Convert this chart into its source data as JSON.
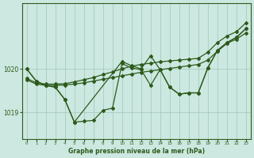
{
  "title": "Graphe pression niveau de la mer (hPa)",
  "background_color": "#cce8e0",
  "line_color": "#2d5a1b",
  "grid_color": "#a0c8b8",
  "xlim": [
    -0.5,
    23.5
  ],
  "ylim": [
    1018.4,
    1021.5
  ],
  "yticks": [
    1019,
    1020
  ],
  "xticks": [
    0,
    1,
    2,
    3,
    4,
    5,
    6,
    7,
    8,
    9,
    10,
    11,
    12,
    13,
    14,
    15,
    16,
    17,
    18,
    19,
    20,
    21,
    22,
    23
  ],
  "series": [
    {
      "x": [
        0,
        1,
        2,
        3,
        4,
        5,
        6,
        7,
        8,
        9,
        10,
        11,
        12,
        13,
        14,
        15,
        16,
        17,
        18,
        19,
        20,
        21,
        22,
        23
      ],
      "y": [
        1019.75,
        1019.65,
        1019.62,
        1019.62,
        1019.63,
        1019.65,
        1019.68,
        1019.72,
        1019.76,
        1019.8,
        1019.84,
        1019.88,
        1019.92,
        1019.95,
        1019.98,
        1020.01,
        1020.04,
        1020.07,
        1020.1,
        1020.2,
        1020.4,
        1020.58,
        1020.68,
        1020.82
      ],
      "marker": "D",
      "markersize": 2.0,
      "linewidth": 0.9
    },
    {
      "x": [
        0,
        1,
        2,
        3,
        4,
        5,
        6,
        7,
        8,
        9,
        10,
        11,
        12,
        13,
        14,
        15,
        16,
        17,
        18,
        19,
        20,
        21,
        22,
        23
      ],
      "y": [
        1019.78,
        1019.68,
        1019.65,
        1019.65,
        1019.66,
        1019.7,
        1019.75,
        1019.8,
        1019.87,
        1019.93,
        1020.0,
        1020.06,
        1020.1,
        1020.13,
        1020.16,
        1020.18,
        1020.2,
        1020.22,
        1020.24,
        1020.38,
        1020.6,
        1020.75,
        1020.85,
        1021.05
      ],
      "marker": "D",
      "markersize": 2.0,
      "linewidth": 0.9
    },
    {
      "x": [
        0,
        1,
        2,
        3,
        4,
        5,
        6,
        7,
        8,
        9,
        10,
        11,
        12,
        13,
        14,
        15,
        16,
        17,
        18,
        19,
        20,
        21,
        22,
        23
      ],
      "y": [
        1020.0,
        1019.72,
        1019.62,
        1019.58,
        1019.3,
        1018.78,
        1018.8,
        1018.82,
        1019.05,
        1019.1,
        1020.12,
        1020.02,
        1019.98,
        1019.62,
        1019.98,
        1019.58,
        1019.42,
        1019.45,
        1019.45,
        1020.02,
        1020.42,
        1020.6,
        1020.72,
        1020.92
      ],
      "marker": "D",
      "markersize": 2.0,
      "linewidth": 0.9
    },
    {
      "x": [
        0,
        1,
        2,
        3,
        4,
        5,
        10,
        11,
        12,
        13,
        14,
        15,
        16,
        17,
        18,
        19,
        20,
        21,
        22,
        23
      ],
      "y": [
        1020.0,
        1019.72,
        1019.62,
        1019.58,
        1019.3,
        1018.78,
        1020.17,
        1020.07,
        1020.0,
        1020.3,
        1019.98,
        1019.58,
        1019.42,
        1019.45,
        1019.45,
        1020.02,
        1020.42,
        1020.6,
        1020.72,
        1020.92
      ],
      "marker": "D",
      "markersize": 2.0,
      "linewidth": 0.9
    }
  ]
}
